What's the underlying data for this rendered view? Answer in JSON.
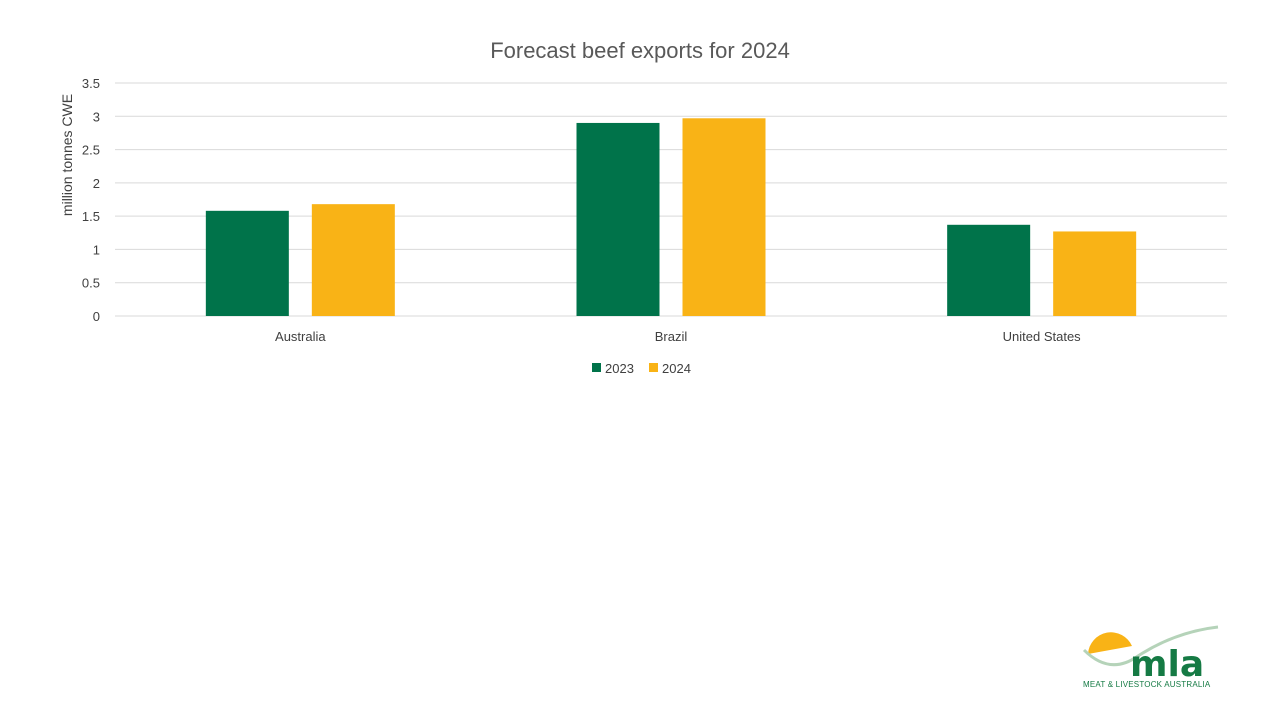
{
  "chart_data": {
    "type": "bar",
    "title": "Forecast beef exports for 2024",
    "xlabel": "",
    "ylabel": "million tonnes CWE",
    "categories": [
      "Australia",
      "Brazil",
      "United States"
    ],
    "series": [
      {
        "name": "2023",
        "color": "#00734a",
        "values": [
          1.58,
          2.9,
          1.37
        ]
      },
      {
        "name": "2024",
        "color": "#f9b316",
        "values": [
          1.68,
          2.97,
          1.27
        ]
      }
    ],
    "ylim": [
      0,
      3.5
    ],
    "yticks": [
      0,
      0.5,
      1,
      1.5,
      2,
      2.5,
      3,
      3.5
    ],
    "grid": true,
    "legend_position": "bottom"
  },
  "logo": {
    "word": "mla",
    "subtitle": "MEAT & LIVESTOCK AUSTRALIA",
    "colors": {
      "green": "#157a44",
      "yellow": "#f9b316",
      "arc": "#b5d3b9"
    }
  }
}
